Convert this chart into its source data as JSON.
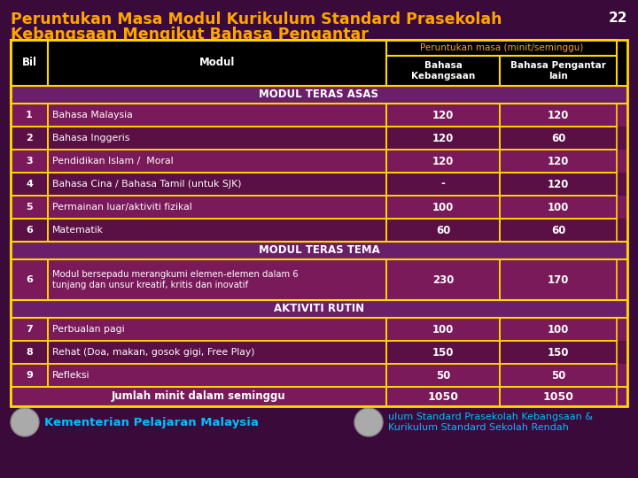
{
  "title_line1": "Peruntukan Masa Modul Kurikulum Standard Prasekolah",
  "title_line2": "Kebangsaan Mengikut Bahasa Pengantar",
  "page_num": "22",
  "bg_color": "#3a0a3a",
  "title_color": "#FFA500",
  "border_color": "#FFD700",
  "col_header_bg": "#000000",
  "col_header_top_text_color": "#FFA500",
  "col_header_sub_text_color": "#FFFFFF",
  "section_bg": "#6b1f6b",
  "section_text_color": "#FFFFFF",
  "row_a_bg": "#7a1a5a",
  "row_b_bg": "#5a0f45",
  "row_text_color": "#FFFFFF",
  "footer_row_bg": "#7a1a5a",
  "footer_row_text_color": "#FFFFFF",
  "col_header_top": "Peruntukan masa (minit/seminggu)",
  "columns": [
    "Bil",
    "Modul",
    "Bahasa\nKebangsaan",
    "Bahasa Pengantar\nlain"
  ],
  "rows": [
    {
      "type": "section",
      "label": "MODUL TERAS ASAS",
      "bil": "",
      "modul": "",
      "bk": "",
      "bp": ""
    },
    {
      "type": "data",
      "bil": "1",
      "modul": "Bahasa Malaysia",
      "bk": "120",
      "bp": "120"
    },
    {
      "type": "data",
      "bil": "2",
      "modul": "Bahasa Inggeris",
      "bk": "120",
      "bp": "60"
    },
    {
      "type": "data",
      "bil": "3",
      "modul": "Pendidikan Islam /  Moral",
      "bk": "120",
      "bp": "120"
    },
    {
      "type": "data",
      "bil": "4",
      "modul": "Bahasa Cina / Bahasa Tamil (untuk SJK)",
      "bk": "-",
      "bp": "120"
    },
    {
      "type": "data",
      "bil": "5",
      "modul": "Permainan luar/aktiviti fizikal",
      "bk": "100",
      "bp": "100"
    },
    {
      "type": "data",
      "bil": "6",
      "modul": "Matematik",
      "bk": "60",
      "bp": "60"
    },
    {
      "type": "section",
      "label": "MODUL TERAS TEMA",
      "bil": "",
      "modul": "",
      "bk": "",
      "bp": ""
    },
    {
      "type": "data_tall",
      "bil": "6",
      "modul": "Modul bersepadu merangkumi elemen-elemen dalam 6\ntunjang dan unsur kreatif, kritis dan inovatif",
      "bk": "230",
      "bp": "170"
    },
    {
      "type": "section",
      "label": "AKTIVITI RUTIN",
      "bil": "",
      "modul": "",
      "bk": "",
      "bp": ""
    },
    {
      "type": "data",
      "bil": "7",
      "modul": "Perbualan pagi",
      "bk": "100",
      "bp": "100"
    },
    {
      "type": "data",
      "bil": "8",
      "modul": "Rehat (Doa, makan, gosok gigi, Free Play)",
      "bk": "150",
      "bp": "150"
    },
    {
      "type": "data",
      "bil": "9",
      "modul": "Refleksi",
      "bk": "50",
      "bp": "50"
    },
    {
      "type": "footer",
      "bil": "",
      "modul": "Jumlah minit dalam seminggu",
      "bk": "1050",
      "bp": "1050"
    }
  ],
  "footer_left_text": "Kementerian Pelajaran Malaysia",
  "footer_right_text": "ulum Standard Prasekolah Kebangsaan &\nKurikulum Standard Sekolah Rendah",
  "footer_text_color": "#00BFFF"
}
